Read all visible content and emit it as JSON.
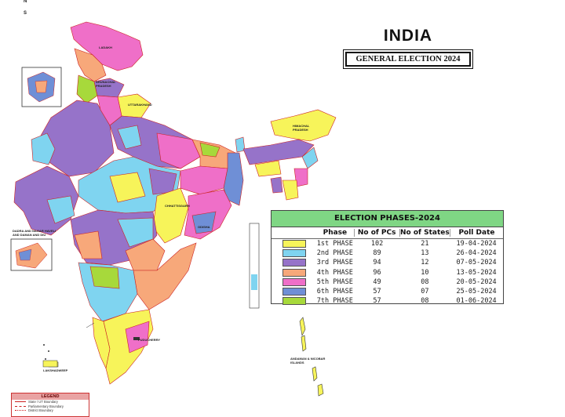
{
  "title": {
    "main": "INDIA",
    "subtitle": "GENERAL ELECTION 2024"
  },
  "compass": {
    "north": "N",
    "south": "S"
  },
  "phase_table": {
    "title": "ELECTION PHASES-2024",
    "columns": [
      "Phase",
      "No of PCs",
      "No of States",
      "Poll Date"
    ],
    "rows": [
      {
        "phase": "1st PHASE",
        "pcs": "102",
        "states": "21",
        "date": "19-04-2024",
        "color": "#f7f45a"
      },
      {
        "phase": "2nd PHASE",
        "pcs": "89",
        "states": "13",
        "date": "26-04-2024",
        "color": "#7fd4f0"
      },
      {
        "phase": "3rd PHASE",
        "pcs": "94",
        "states": "12",
        "date": "07-05-2024",
        "color": "#9673c9"
      },
      {
        "phase": "4th PHASE",
        "pcs": "96",
        "states": "10",
        "date": "13-05-2024",
        "color": "#f7a87a"
      },
      {
        "phase": "5th PHASE",
        "pcs": "49",
        "states": "08",
        "date": "20-05-2024",
        "color": "#ef6fc8"
      },
      {
        "phase": "6th PHASE",
        "pcs": "57",
        "states": "07",
        "date": "25-05-2024",
        "color": "#6f8fd6"
      },
      {
        "phase": "7th PHASE",
        "pcs": "57",
        "states": "08",
        "date": "01-06-2024",
        "color": "#a7d93b"
      }
    ]
  },
  "legend": {
    "title": "LEGEND",
    "items": [
      "State / UT Boundary",
      "Parliamentary Boundary",
      "District Boundary"
    ]
  },
  "map_labels": {
    "ladakh": "LADAKH",
    "himachal": "HIMACHAL PRADESH",
    "uttarakhand": "UTTARAKHAND",
    "arunachal": "ARUNACHAL PRADESH",
    "chhattisgarh": "CHHATTISGARH",
    "odisha": "ODISHA",
    "dadra": "DADRA AND NAGAR HAVELI AND DAMAN AND DIU",
    "lakshadweep": "LAKSHADWEEP",
    "puducherry": "PUDUCHERRY",
    "andaman": "ANDAMAN & NICOBAR ISLANDS"
  }
}
